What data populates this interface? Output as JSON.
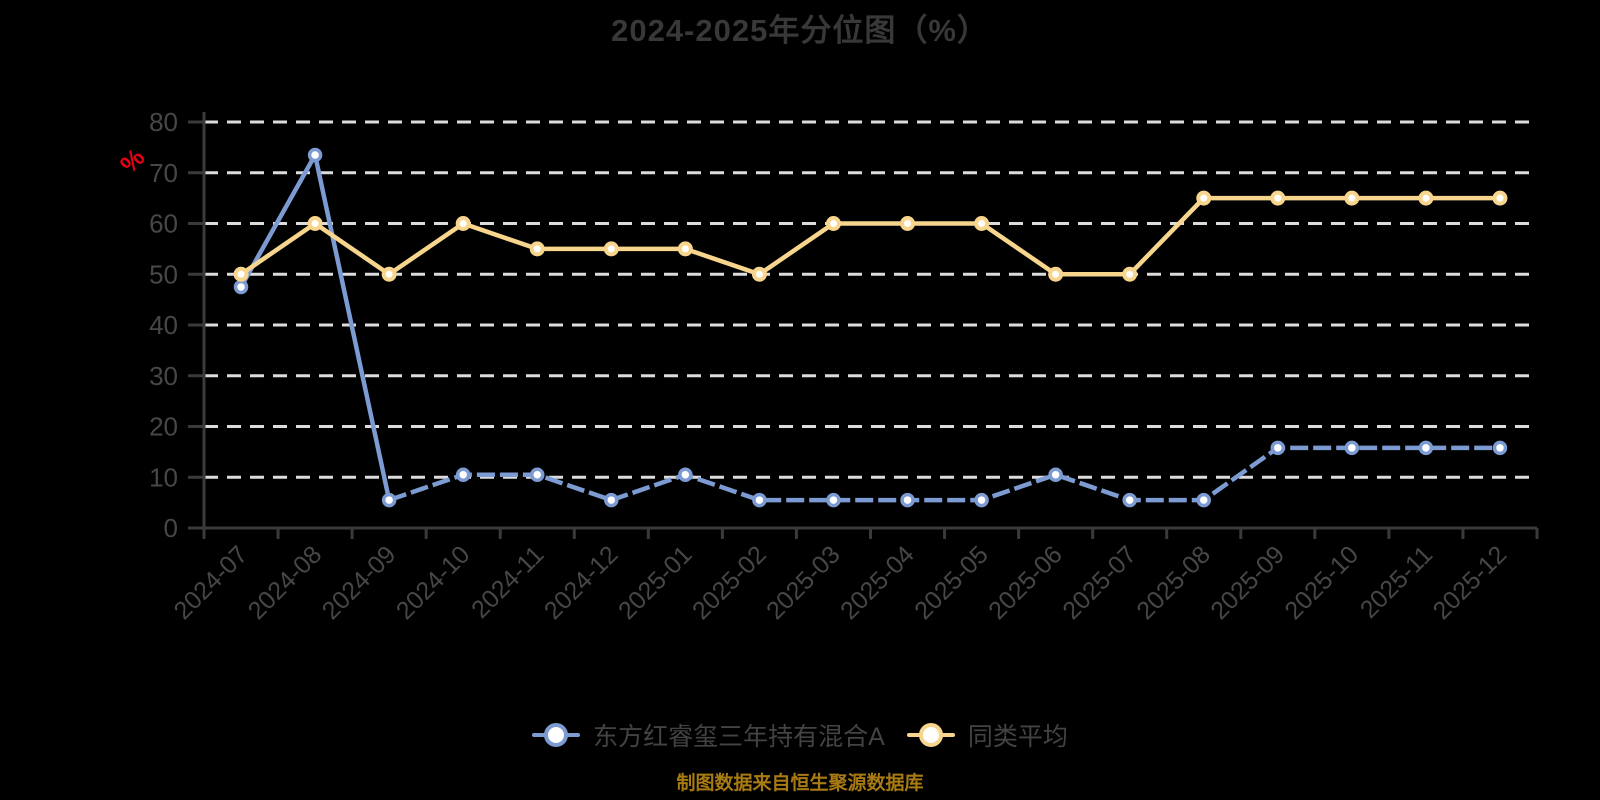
{
  "page": {
    "background_color": "#000000"
  },
  "title": {
    "text": "2024-2025年分位图（%）",
    "color": "#383838"
  },
  "source_note": {
    "text": "制图数据来自恒生聚源数据库",
    "color": "#a87a12"
  },
  "y_axis": {
    "unit_label": "%",
    "unit_color": "#e60012",
    "tick_labels": [
      0,
      10,
      20,
      30,
      40,
      50,
      60,
      70,
      80
    ],
    "label_color": "#474747",
    "axis_color": "#3a3a3a"
  },
  "x_axis": {
    "label_color": "#474747",
    "labels_rotated_degrees": -45
  },
  "grid": {
    "style": "horizontal-dashed",
    "color": "#dcdcdc"
  },
  "legend": {
    "position": "bottom",
    "items": [
      {
        "label": "东方红睿玺三年持有混合A",
        "color": "#7d9bd3"
      },
      {
        "label": "同类平均",
        "color": "#f8d58d"
      }
    ]
  },
  "chart_data": {
    "type": "line",
    "title": "2024-2025年分位图（%）",
    "xlabel": "",
    "ylabel": "%",
    "ylim": [
      0,
      80
    ],
    "y_tick_step": 10,
    "grid": "horizontal dashed lines on black background",
    "legend_position": "bottom-center",
    "categories": [
      "2024-07",
      "2024-08",
      "2024-09",
      "2024-10",
      "2024-11",
      "2024-12",
      "2025-01",
      "2025-02",
      "2025-03",
      "2025-04",
      "2025-05",
      "2025-06",
      "2025-07",
      "2025-08",
      "2025-09",
      "2025-10",
      "2025-11",
      "2025-12"
    ],
    "series": [
      {
        "name": "东方红睿玺三年持有混合A",
        "color": "#7d9bd3",
        "marker": "circle-white-fill",
        "line_style": "solid then dashed",
        "dash_from_index": 2,
        "values": [
          47.5,
          73.5,
          5.5,
          10.5,
          10.5,
          5.5,
          10.5,
          5.5,
          5.5,
          5.5,
          5.5,
          10.5,
          5.5,
          5.5,
          15.8,
          15.8,
          15.8,
          15.8
        ]
      },
      {
        "name": "同类平均",
        "color": "#f8d58d",
        "marker": "circle-white-fill",
        "line_style": "solid",
        "values": [
          50,
          60,
          50,
          60,
          55,
          55,
          55,
          50,
          60,
          60,
          60,
          50,
          50,
          65,
          65,
          65,
          65,
          65
        ]
      }
    ]
  }
}
